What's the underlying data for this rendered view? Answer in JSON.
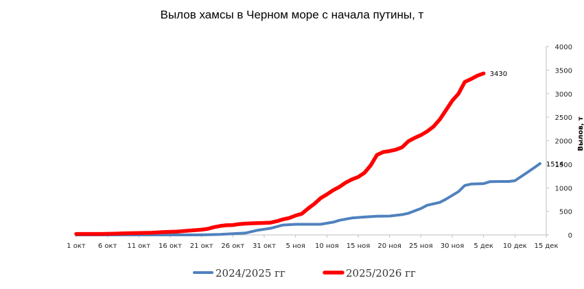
{
  "chart_data": {
    "type": "line",
    "title": "Вылов хамсы в Черном море с начала путины, т",
    "xlabel": "",
    "ylabel": "Вылов, т",
    "ylim": [
      0,
      4000
    ],
    "y_ticks": [
      "0",
      "500",
      "1000",
      "1500",
      "2000",
      "2500",
      "3000",
      "3500",
      "4000"
    ],
    "y_axis_side": "right",
    "x_tick_labels": [
      "1 окт",
      "6 окт",
      "11 окт",
      "16 окт",
      "21 окт",
      "26 окт",
      "31 окт",
      "5 ноя",
      "10 ноя",
      "15 ноя",
      "20 ноя",
      "25 ноя",
      "30 ноя",
      "5 дек",
      "10 дек",
      "15 дек"
    ],
    "x_day_range": [
      1,
      76
    ],
    "grid": false,
    "legend_position": "bottom",
    "series": [
      {
        "name": "2024/2025 гг",
        "color": "#4f81bd",
        "end_label": "1514",
        "points": [
          [
            1,
            0
          ],
          [
            5,
            0
          ],
          [
            10,
            0
          ],
          [
            15,
            0
          ],
          [
            20,
            0
          ],
          [
            22,
            3
          ],
          [
            24,
            10
          ],
          [
            26,
            25
          ],
          [
            28,
            40
          ],
          [
            30,
            100
          ],
          [
            32,
            140
          ],
          [
            34,
            210
          ],
          [
            36,
            225
          ],
          [
            38,
            225
          ],
          [
            40,
            225
          ],
          [
            42,
            270
          ],
          [
            43,
            310
          ],
          [
            45,
            360
          ],
          [
            47,
            380
          ],
          [
            49,
            395
          ],
          [
            51,
            400
          ],
          [
            53,
            430
          ],
          [
            54,
            460
          ],
          [
            56,
            560
          ],
          [
            57,
            630
          ],
          [
            59,
            690
          ],
          [
            60,
            760
          ],
          [
            62,
            920
          ],
          [
            63,
            1050
          ],
          [
            64,
            1080
          ],
          [
            66,
            1090
          ],
          [
            67,
            1130
          ],
          [
            69,
            1135
          ],
          [
            70,
            1135
          ],
          [
            71,
            1150
          ],
          [
            73,
            1330
          ],
          [
            74,
            1420
          ],
          [
            75,
            1514
          ]
        ]
      },
      {
        "name": "2025/2026 гг",
        "color": "#ff0000",
        "end_label": "3430",
        "points": [
          [
            1,
            20
          ],
          [
            5,
            20
          ],
          [
            7,
            25
          ],
          [
            9,
            35
          ],
          [
            11,
            40
          ],
          [
            13,
            45
          ],
          [
            15,
            60
          ],
          [
            17,
            70
          ],
          [
            19,
            90
          ],
          [
            21,
            110
          ],
          [
            22,
            130
          ],
          [
            23,
            165
          ],
          [
            24,
            190
          ],
          [
            25,
            205
          ],
          [
            26,
            210
          ],
          [
            27,
            230
          ],
          [
            28,
            240
          ],
          [
            30,
            250
          ],
          [
            31,
            255
          ],
          [
            32,
            260
          ],
          [
            33,
            290
          ],
          [
            34,
            330
          ],
          [
            35,
            360
          ],
          [
            36,
            410
          ],
          [
            37,
            450
          ],
          [
            38,
            560
          ],
          [
            39,
            660
          ],
          [
            40,
            780
          ],
          [
            41,
            860
          ],
          [
            42,
            950
          ],
          [
            43,
            1020
          ],
          [
            44,
            1110
          ],
          [
            45,
            1180
          ],
          [
            46,
            1230
          ],
          [
            47,
            1320
          ],
          [
            48,
            1480
          ],
          [
            49,
            1700
          ],
          [
            50,
            1760
          ],
          [
            51,
            1780
          ],
          [
            52,
            1810
          ],
          [
            53,
            1860
          ],
          [
            54,
            1990
          ],
          [
            55,
            2060
          ],
          [
            56,
            2120
          ],
          [
            57,
            2200
          ],
          [
            58,
            2300
          ],
          [
            59,
            2450
          ],
          [
            60,
            2650
          ],
          [
            61,
            2850
          ],
          [
            62,
            3000
          ],
          [
            63,
            3250
          ],
          [
            64,
            3310
          ],
          [
            65,
            3380
          ],
          [
            66,
            3430
          ]
        ]
      }
    ]
  }
}
